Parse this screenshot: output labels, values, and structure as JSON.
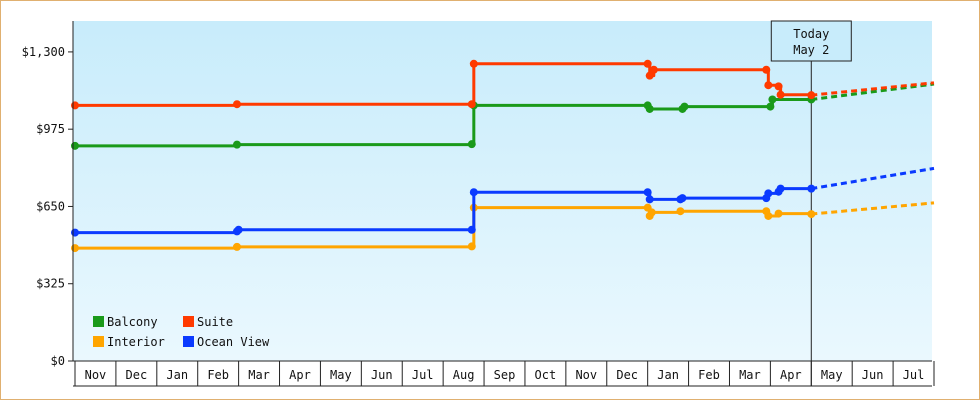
{
  "chart_data": {
    "type": "line",
    "title": "",
    "xlabel": "",
    "ylabel": "",
    "ylim": [
      0,
      1430
    ],
    "y_ticks": [
      0,
      325,
      650,
      975,
      1300
    ],
    "y_tick_labels": [
      "$0",
      "$325",
      "$650",
      "$975",
      "$1,300"
    ],
    "months": [
      "Nov",
      "Dec",
      "Jan",
      "Feb",
      "Mar",
      "Apr",
      "May",
      "Jun",
      "Jul",
      "Aug",
      "Sep",
      "Oct",
      "Nov",
      "Dec",
      "Jan",
      "Feb",
      "Mar",
      "Apr",
      "May",
      "Jun",
      "Jul"
    ],
    "today_index": 18,
    "today_label": [
      "Today",
      "May 2"
    ],
    "grid": false,
    "legend_position": "bottom-left",
    "series": [
      {
        "name": "Balcony",
        "color": "#1a9a1a",
        "points": [
          [
            0,
            905
          ],
          [
            3.96,
            910
          ],
          [
            9.7,
            912
          ],
          [
            9.75,
            1075
          ],
          [
            14.0,
            1075
          ],
          [
            14.05,
            1060
          ],
          [
            14.85,
            1060
          ],
          [
            14.9,
            1070
          ],
          [
            17.0,
            1070
          ],
          [
            17.05,
            1100
          ],
          [
            18.0,
            1100
          ]
        ],
        "forecast": [
          [
            18.0,
            1100
          ],
          [
            21.0,
            1165
          ]
        ]
      },
      {
        "name": "Suite",
        "color": "#ff3a00",
        "points": [
          [
            0,
            1075
          ],
          [
            3.96,
            1080
          ],
          [
            9.7,
            1080
          ],
          [
            9.75,
            1250
          ],
          [
            14.0,
            1250
          ],
          [
            14.05,
            1200
          ],
          [
            14.15,
            1225
          ],
          [
            16.9,
            1225
          ],
          [
            16.95,
            1160
          ],
          [
            17.2,
            1155
          ],
          [
            17.25,
            1120
          ],
          [
            18.0,
            1118
          ]
        ],
        "forecast": [
          [
            18.0,
            1118
          ],
          [
            21.0,
            1170
          ]
        ]
      },
      {
        "name": "Interior",
        "color": "#ffa500",
        "points": [
          [
            0,
            475
          ],
          [
            3.96,
            480
          ],
          [
            9.7,
            482
          ],
          [
            9.75,
            645
          ],
          [
            14.0,
            645
          ],
          [
            14.05,
            610
          ],
          [
            14.1,
            625
          ],
          [
            14.8,
            630
          ],
          [
            16.9,
            630
          ],
          [
            16.95,
            610
          ],
          [
            17.2,
            620
          ],
          [
            18.0,
            618
          ]
        ],
        "forecast": [
          [
            18.0,
            618
          ],
          [
            21.0,
            665
          ]
        ]
      },
      {
        "name": "Ocean View",
        "color": "#0a3aff",
        "points": [
          [
            0,
            540
          ],
          [
            3.96,
            545
          ],
          [
            4.0,
            552
          ],
          [
            9.7,
            552
          ],
          [
            9.75,
            710
          ],
          [
            14.0,
            710
          ],
          [
            14.05,
            680
          ],
          [
            14.8,
            680
          ],
          [
            14.85,
            685
          ],
          [
            16.9,
            685
          ],
          [
            16.95,
            705
          ],
          [
            17.2,
            712
          ],
          [
            17.25,
            725
          ],
          [
            18.0,
            725
          ]
        ],
        "forecast": [
          [
            18.0,
            725
          ],
          [
            21.0,
            810
          ]
        ]
      }
    ]
  }
}
